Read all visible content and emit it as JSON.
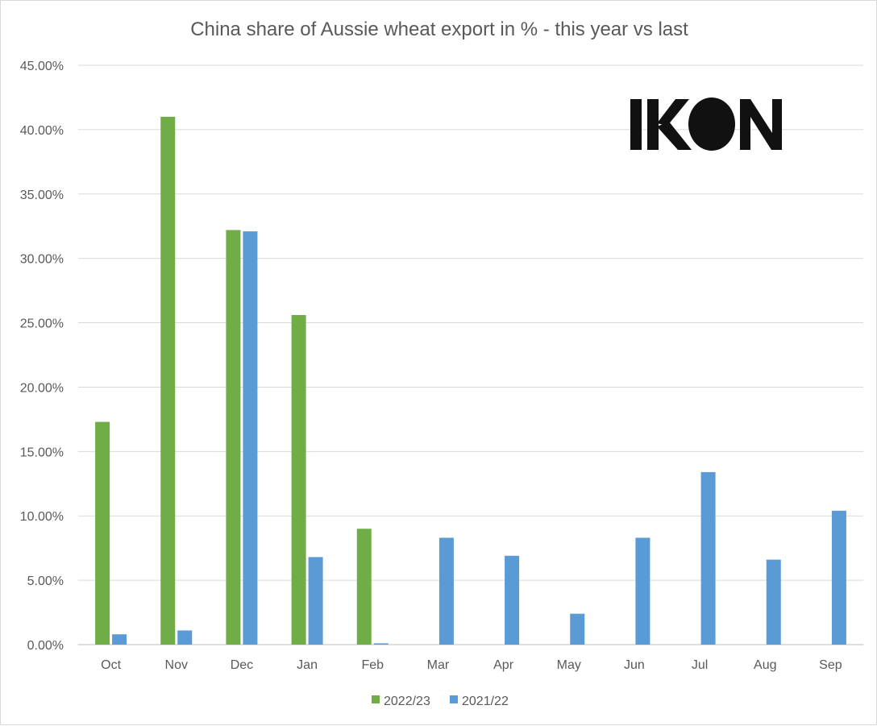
{
  "chart_data": {
    "type": "bar",
    "title": "China share of Aussie wheat export in % - this year vs last",
    "categories": [
      "Oct",
      "Nov",
      "Dec",
      "Jan",
      "Feb",
      "Mar",
      "Apr",
      "May",
      "Jun",
      "Jul",
      "Aug",
      "Sep"
    ],
    "series": [
      {
        "name": "2022/23",
        "color": "#70ad47",
        "values": [
          17.3,
          41.0,
          32.2,
          25.6,
          9.0,
          null,
          null,
          null,
          null,
          null,
          null,
          null
        ]
      },
      {
        "name": "2021/22",
        "color": "#5b9bd5",
        "values": [
          0.8,
          1.1,
          32.1,
          6.8,
          0.1,
          8.3,
          6.9,
          2.4,
          8.3,
          13.4,
          6.6,
          10.4
        ]
      }
    ],
    "ylim": [
      0,
      45
    ],
    "yticks": [
      "0.00%",
      "5.00%",
      "10.00%",
      "15.00%",
      "20.00%",
      "25.00%",
      "30.00%",
      "35.00%",
      "40.00%",
      "45.00%"
    ],
    "ytick_values": [
      0,
      5,
      10,
      15,
      20,
      25,
      30,
      35,
      40,
      45
    ],
    "xlabel": "",
    "ylabel": "",
    "grid": true,
    "legend_position": "bottom"
  },
  "logo": {
    "text": "IKON",
    "color": "#111111"
  }
}
